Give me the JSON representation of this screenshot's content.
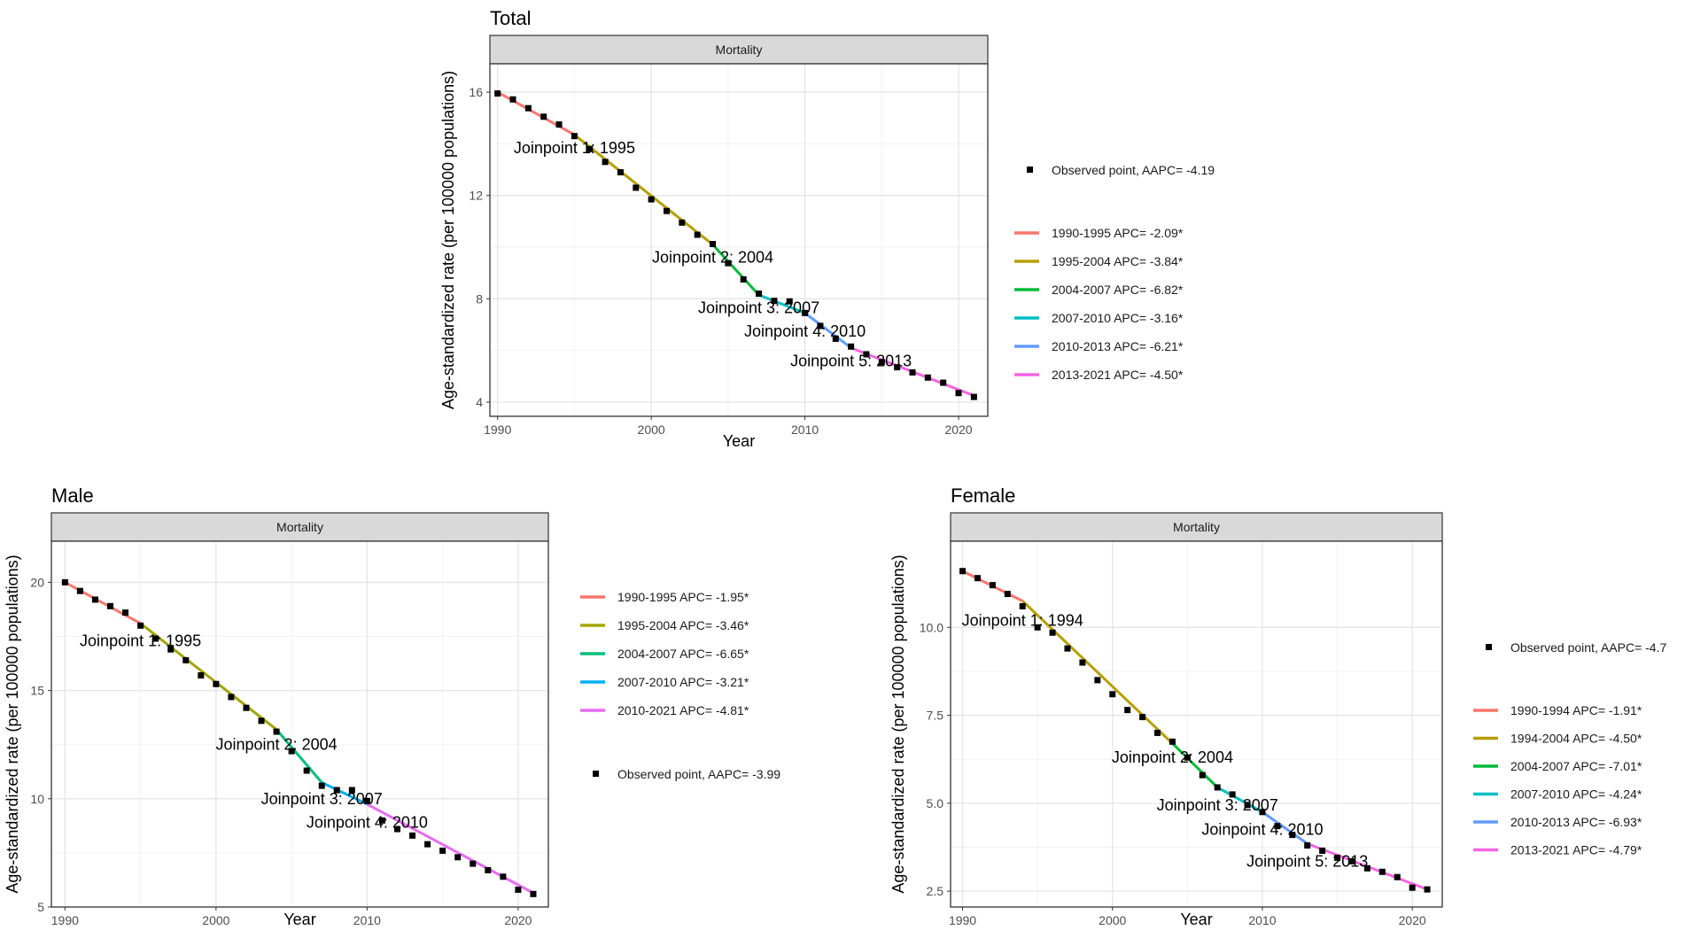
{
  "chart_data": [
    {
      "id": "total",
      "type": "line",
      "title": "Total",
      "facet_label": "Mortality",
      "xlabel": "Year",
      "ylabel": "Age-standardized rate (per 100000 populations)",
      "xlim": [
        1989.5,
        2021.9
      ],
      "ylim": [
        3.45,
        17.1
      ],
      "xticks": [
        1990,
        2000,
        2010,
        2020
      ],
      "yticks": [
        4,
        8,
        12,
        16
      ],
      "ytick_labels": [
        "4",
        "8",
        "12",
        "16"
      ],
      "legend_order": "observed-first",
      "observed": {
        "label": "Observed point, AAPC= -4.19",
        "x": [
          1990,
          1991,
          1992,
          1993,
          1994,
          1995,
          1996,
          1997,
          1998,
          1999,
          2000,
          2001,
          2002,
          2003,
          2004,
          2005,
          2006,
          2007,
          2008,
          2009,
          2010,
          2011,
          2012,
          2013,
          2014,
          2015,
          2016,
          2017,
          2018,
          2019,
          2020,
          2021
        ],
        "y": [
          15.95,
          15.72,
          15.38,
          15.05,
          14.75,
          14.3,
          13.8,
          13.3,
          12.9,
          12.3,
          11.85,
          11.4,
          10.95,
          10.48,
          10.12,
          9.38,
          8.75,
          8.2,
          7.92,
          7.9,
          7.45,
          6.95,
          6.45,
          6.15,
          5.85,
          5.55,
          5.35,
          5.15,
          4.95,
          4.75,
          4.35,
          4.2
        ]
      },
      "segments": [
        {
          "label": "1990-1995 APC= -2.09*",
          "color": "#F8766D",
          "x": [
            1990,
            1995
          ],
          "y": [
            16.0,
            14.35
          ]
        },
        {
          "label": "1995-2004 APC= -3.84*",
          "color": "#B79F00",
          "x": [
            1995,
            2004
          ],
          "y": [
            14.35,
            10.1
          ]
        },
        {
          "label": "2004-2007 APC= -6.82*",
          "color": "#00BA38",
          "x": [
            2004,
            2007
          ],
          "y": [
            10.1,
            8.15
          ]
        },
        {
          "label": "2007-2010 APC= -3.16*",
          "color": "#00BFC4",
          "x": [
            2007,
            2010
          ],
          "y": [
            8.15,
            7.45
          ]
        },
        {
          "label": "2010-2013 APC= -6.21*",
          "color": "#619CFF",
          "x": [
            2010,
            2013
          ],
          "y": [
            7.45,
            6.1
          ]
        },
        {
          "label": "2013-2021 APC= -4.50*",
          "color": "#F564E3",
          "x": [
            2013,
            2021
          ],
          "y": [
            6.1,
            4.25
          ]
        }
      ],
      "joinpoints": [
        {
          "text": "Joinpoint 1: 1995",
          "x": 1995,
          "y": 13.85
        },
        {
          "text": "Joinpoint 2: 2004",
          "x": 2004,
          "y": 9.6
        },
        {
          "text": "Joinpoint 3: 2007",
          "x": 2007,
          "y": 7.65
        },
        {
          "text": "Joinpoint 4: 2010",
          "x": 2010,
          "y": 6.75
        },
        {
          "text": "Joinpoint 5: 2013",
          "x": 2013,
          "y": 5.6
        }
      ]
    },
    {
      "id": "male",
      "type": "line",
      "title": "Male",
      "facet_label": "Mortality",
      "xlabel": "Year",
      "ylabel": "Age-standardized rate (per 100000 populations)",
      "xlim": [
        1989.1,
        2022.0
      ],
      "ylim": [
        5.0,
        21.9
      ],
      "xticks": [
        1990,
        2000,
        2010,
        2020
      ],
      "yticks": [
        5,
        10,
        15,
        20
      ],
      "ytick_labels": [
        "5",
        "10",
        "15",
        "20"
      ],
      "legend_order": "segments-first",
      "observed": {
        "label": "Observed point, AAPC= -3.99",
        "x": [
          1990,
          1991,
          1992,
          1993,
          1994,
          1995,
          1996,
          1997,
          1998,
          1999,
          2000,
          2001,
          2002,
          2003,
          2004,
          2005,
          2006,
          2007,
          2008,
          2009,
          2010,
          2011,
          2012,
          2013,
          2014,
          2015,
          2016,
          2017,
          2018,
          2019,
          2020,
          2021
        ],
        "y": [
          20.0,
          19.6,
          19.2,
          18.9,
          18.6,
          18.0,
          17.4,
          16.9,
          16.4,
          15.7,
          15.3,
          14.7,
          14.2,
          13.6,
          13.1,
          12.2,
          11.3,
          10.6,
          10.4,
          10.4,
          9.9,
          9.0,
          8.6,
          8.3,
          7.9,
          7.6,
          7.3,
          7.0,
          6.7,
          6.4,
          5.8,
          5.6
        ]
      },
      "segments": [
        {
          "label": "1990-1995 APC= -1.95*",
          "color": "#F8766D",
          "x": [
            1990,
            1995
          ],
          "y": [
            20.0,
            18.1
          ]
        },
        {
          "label": "1995-2004 APC= -3.46*",
          "color": "#A3A500",
          "x": [
            1995,
            2004
          ],
          "y": [
            18.1,
            13.2
          ]
        },
        {
          "label": "2004-2007 APC= -6.65*",
          "color": "#00BF7D",
          "x": [
            2004,
            2007
          ],
          "y": [
            13.2,
            10.75
          ]
        },
        {
          "label": "2007-2010 APC= -3.21*",
          "color": "#00B0F6",
          "x": [
            2007,
            2010
          ],
          "y": [
            10.75,
            9.75
          ]
        },
        {
          "label": "2010-2021 APC= -4.81*",
          "color": "#E76BF3",
          "x": [
            2010,
            2021
          ],
          "y": [
            9.75,
            5.65
          ]
        }
      ],
      "joinpoints": [
        {
          "text": "Joinpoint 1: 1995",
          "x": 1995,
          "y": 17.3
        },
        {
          "text": "Joinpoint 2: 2004",
          "x": 2004,
          "y": 12.5
        },
        {
          "text": "Joinpoint 3: 2007",
          "x": 2007,
          "y": 10.0
        },
        {
          "text": "Joinpoint 4: 2010",
          "x": 2010,
          "y": 8.9
        }
      ]
    },
    {
      "id": "female",
      "type": "line",
      "title": "Female",
      "facet_label": "Mortality",
      "xlabel": "Year",
      "ylabel": "Age-standardized rate (per 100000 populations)",
      "xlim": [
        1989.2,
        2022.0
      ],
      "ylim": [
        2.05,
        12.45
      ],
      "xticks": [
        1990,
        2000,
        2010,
        2020
      ],
      "yticks": [
        2.5,
        5.0,
        7.5,
        10.0
      ],
      "ytick_labels": [
        "2.5",
        "5.0",
        "7.5",
        "10.0"
      ],
      "legend_order": "observed-first",
      "observed": {
        "label": "Observed point, AAPC= -4.7",
        "x": [
          1990,
          1991,
          1992,
          1993,
          1994,
          1995,
          1996,
          1997,
          1998,
          1999,
          2000,
          2001,
          2002,
          2003,
          2004,
          2005,
          2006,
          2007,
          2008,
          2009,
          2010,
          2011,
          2012,
          2013,
          2014,
          2015,
          2016,
          2017,
          2018,
          2019,
          2020,
          2021
        ],
        "y": [
          11.6,
          11.4,
          11.2,
          10.95,
          10.6,
          10.0,
          9.85,
          9.4,
          9.0,
          8.5,
          8.1,
          7.65,
          7.45,
          7.0,
          6.75,
          6.3,
          5.8,
          5.45,
          5.25,
          4.95,
          4.75,
          4.35,
          4.1,
          3.8,
          3.65,
          3.45,
          3.35,
          3.15,
          3.05,
          2.9,
          2.6,
          2.55
        ]
      },
      "segments": [
        {
          "label": "1990-1994 APC= -1.91*",
          "color": "#F8766D",
          "x": [
            1990,
            1994
          ],
          "y": [
            11.6,
            10.75
          ]
        },
        {
          "label": "1994-2004 APC= -4.50*",
          "color": "#B79F00",
          "x": [
            1994,
            2004
          ],
          "y": [
            10.75,
            6.7
          ]
        },
        {
          "label": "2004-2007 APC= -7.01*",
          "color": "#00BA38",
          "x": [
            2004,
            2007
          ],
          "y": [
            6.7,
            5.45
          ]
        },
        {
          "label": "2007-2010 APC= -4.24*",
          "color": "#00BFC4",
          "x": [
            2007,
            2010
          ],
          "y": [
            5.45,
            4.75
          ]
        },
        {
          "label": "2010-2013 APC= -6.93*",
          "color": "#619CFF",
          "x": [
            2010,
            2013
          ],
          "y": [
            4.75,
            3.85
          ]
        },
        {
          "label": "2013-2021 APC= -4.79*",
          "color": "#F564E3",
          "x": [
            2013,
            2021
          ],
          "y": [
            3.85,
            2.55
          ]
        }
      ],
      "joinpoints": [
        {
          "text": "Joinpoint 1: 1994",
          "x": 1994,
          "y": 10.2
        },
        {
          "text": "Joinpoint 2: 2004",
          "x": 2004,
          "y": 6.3
        },
        {
          "text": "Joinpoint 3: 2007",
          "x": 2007,
          "y": 4.95
        },
        {
          "text": "Joinpoint 4: 2010",
          "x": 2010,
          "y": 4.25
        },
        {
          "text": "Joinpoint 5: 2013",
          "x": 2013,
          "y": 3.35
        }
      ]
    }
  ]
}
